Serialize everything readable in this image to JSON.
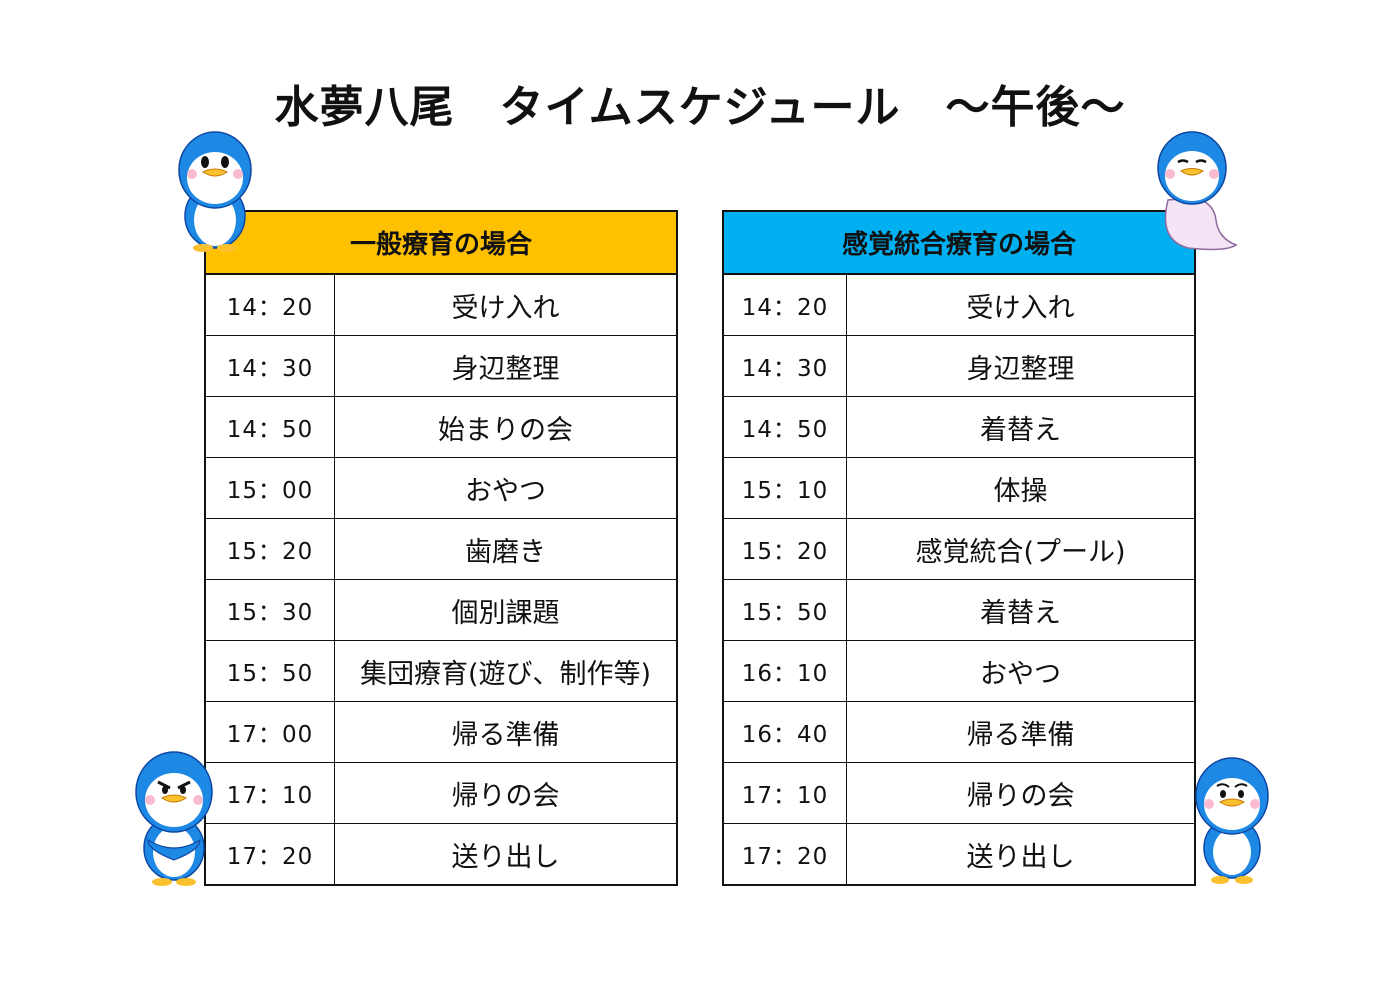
{
  "title": "水夢八尾　タイムスケジュール　～午後～",
  "colors": {
    "left_header": "#FFC000",
    "right_header": "#00B0F0",
    "penguin_blue": "#1E88E5"
  },
  "left_table": {
    "header": "一般療育の場合",
    "rows": [
      {
        "time": "14：20",
        "activity": "受け入れ"
      },
      {
        "time": "14：30",
        "activity": "身辺整理"
      },
      {
        "time": "14：50",
        "activity": "始まりの会"
      },
      {
        "time": "15：00",
        "activity": "おやつ"
      },
      {
        "time": "15：20",
        "activity": "歯磨き"
      },
      {
        "time": "15：30",
        "activity": "個別課題"
      },
      {
        "time": "15：50",
        "activity": "集団療育(遊び、制作等)"
      },
      {
        "time": "17：00",
        "activity": "帰る準備"
      },
      {
        "time": "17：10",
        "activity": "帰りの会"
      },
      {
        "time": "17：20",
        "activity": "送り出し"
      }
    ]
  },
  "right_table": {
    "header": "感覚統合療育の場合",
    "rows": [
      {
        "time": "14：20",
        "activity": "受け入れ"
      },
      {
        "time": "14：30",
        "activity": "身辺整理"
      },
      {
        "time": "14：50",
        "activity": "着替え"
      },
      {
        "time": "15：10",
        "activity": "体操"
      },
      {
        "time": "15：20",
        "activity": "感覚統合(プール)"
      },
      {
        "time": "15：50",
        "activity": "着替え"
      },
      {
        "time": "16：10",
        "activity": "おやつ"
      },
      {
        "time": "16：40",
        "activity": "帰る準備"
      },
      {
        "time": "17：10",
        "activity": "帰りの会"
      },
      {
        "time": "17：20",
        "activity": "送り出し"
      }
    ]
  },
  "decorations": [
    "penguin-icon",
    "penguin-icon",
    "penguin-icon",
    "penguin-icon"
  ]
}
